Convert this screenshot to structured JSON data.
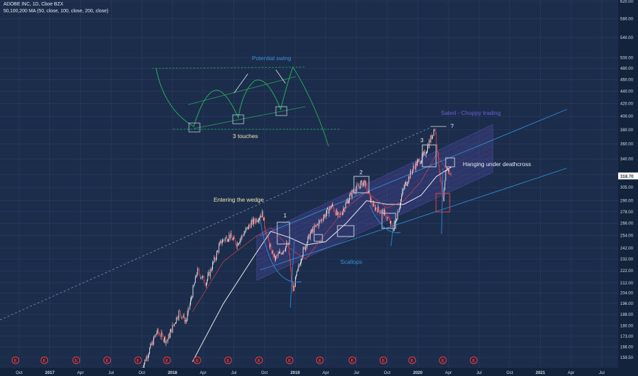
{
  "header": {
    "symbol_line": "ADOBE INC, 1D, Cboe BZX",
    "indicator_line": "50,100,200 MA (50, close, 100, close, 200, close)"
  },
  "colors": {
    "background": "#1b2d4b",
    "grid": "#2a3f63",
    "price_scale_bg": "#14233c",
    "candle_up": "#ffffff",
    "candle_down": "#e9444e",
    "ma_50": "#e9444e",
    "ma_100": "#ffffff",
    "trendline": "#2f8fd8",
    "channel_fill": "#5b4fb0",
    "annotation_green": "#26a65b",
    "annotation_text": "#f2e6b0",
    "label_blue": "#3a8fd8",
    "label_purple": "#6f5fd6",
    "earnings_badge": "#e9444e",
    "last_price_badge": "#ffffff"
  },
  "chart_data": {
    "type": "candlestick",
    "title": "ADOBE INC",
    "interval": "1D",
    "exchange": "Cboe BZX",
    "y_scale": "logarithmic",
    "ylim": [
      153,
      620
    ],
    "y_ticks": [
      159.5,
      166.0,
      173.0,
      180.0,
      188.0,
      196.0,
      204.0,
      212.0,
      222.0,
      232.0,
      242.0,
      254.0,
      266.0,
      278.0,
      290.0,
      305.0,
      320.0,
      340.0,
      360.0,
      380.0,
      400.0,
      420.0,
      440.0,
      460.0,
      480.0,
      500.0,
      540.0,
      580.0,
      620.0
    ],
    "last_price": "318.70",
    "x_ticks": [
      "Oct",
      "2017",
      "Apr",
      "Jul",
      "Oct",
      "2018",
      "Apr",
      "Jul",
      "Oct",
      "2019",
      "Apr",
      "Jul",
      "Oct",
      "2020",
      "Apr",
      "Jul",
      "Oct",
      "2021",
      "Apr",
      "Jul"
    ],
    "moving_averages": [
      "50 MA",
      "100 MA",
      "200 MA"
    ],
    "price_path": [
      [
        "2017-10-01",
        153
      ],
      [
        "2017-11-15",
        176
      ],
      [
        "2017-12-15",
        170
      ],
      [
        "2018-01-20",
        190
      ],
      [
        "2018-02-10",
        183
      ],
      [
        "2018-03-15",
        222
      ],
      [
        "2018-04-10",
        212
      ],
      [
        "2018-05-25",
        248
      ],
      [
        "2018-06-20",
        254
      ],
      [
        "2018-07-10",
        246
      ],
      [
        "2018-08-20",
        265
      ],
      [
        "2018-09-25",
        276
      ],
      [
        "2018-10-10",
        250
      ],
      [
        "2018-11-01",
        232
      ],
      [
        "2018-12-10",
        246
      ],
      [
        "2018-12-24",
        205
      ],
      [
        "2019-01-20",
        236
      ],
      [
        "2019-02-15",
        256
      ],
      [
        "2019-03-20",
        270
      ],
      [
        "2019-04-20",
        285
      ],
      [
        "2019-05-10",
        272
      ],
      [
        "2019-06-20",
        300
      ],
      [
        "2019-07-25",
        312
      ],
      [
        "2019-08-20",
        284
      ],
      [
        "2019-09-25",
        276
      ],
      [
        "2019-10-20",
        260
      ],
      [
        "2019-11-20",
        305
      ],
      [
        "2019-12-20",
        330
      ],
      [
        "2020-01-20",
        345
      ],
      [
        "2020-02-20",
        383
      ],
      [
        "2020-03-16",
        285
      ],
      [
        "2020-03-25",
        330
      ],
      [
        "2020-04-10",
        318.7
      ]
    ],
    "ma_50_path": [
      [
        "2018-03-01",
        190
      ],
      [
        "2018-06-01",
        230
      ],
      [
        "2018-09-01",
        252
      ],
      [
        "2018-10-20",
        262
      ],
      [
        "2018-12-15",
        242
      ],
      [
        "2019-02-01",
        232
      ],
      [
        "2019-04-01",
        256
      ],
      [
        "2019-06-01",
        282
      ],
      [
        "2019-08-01",
        300
      ],
      [
        "2019-10-01",
        282
      ],
      [
        "2019-11-20",
        290
      ],
      [
        "2020-01-10",
        312
      ],
      [
        "2020-02-25",
        346
      ],
      [
        "2020-04-10",
        318
      ]
    ],
    "ma_100_path": [
      [
        "2018-03-01",
        157
      ],
      [
        "2018-06-01",
        196
      ],
      [
        "2018-09-01",
        235
      ],
      [
        "2018-10-20",
        258
      ],
      [
        "2018-12-15",
        252
      ],
      [
        "2019-02-01",
        245
      ],
      [
        "2019-04-01",
        248
      ],
      [
        "2019-06-01",
        266
      ],
      [
        "2019-08-01",
        290
      ],
      [
        "2019-10-01",
        286
      ],
      [
        "2019-11-20",
        286
      ],
      [
        "2020-01-10",
        296
      ],
      [
        "2020-02-25",
        318
      ],
      [
        "2020-04-10",
        330
      ]
    ],
    "earnings_marker": "E",
    "earnings_dates": [
      "2016-09-20",
      "2016-12-15",
      "2017-03-20",
      "2017-06-20",
      "2017-09-20",
      "2017-12-15",
      "2018-03-15",
      "2018-06-15",
      "2018-09-15",
      "2018-12-15",
      "2019-03-15",
      "2019-06-20",
      "2019-09-20",
      "2019-12-15",
      "2020-03-15",
      "2020-06-15"
    ],
    "annotations": [
      {
        "text": "Potential swing",
        "color": "blue"
      },
      {
        "text": "3 touches",
        "color": "yellow"
      },
      {
        "text": "Sated - Choppy trading",
        "color": "purple"
      },
      {
        "text": "?",
        "color": "white"
      },
      {
        "text": "3",
        "color": "white"
      },
      {
        "text": "Hanging under deathcross",
        "color": "white"
      },
      {
        "text": "2",
        "color": "white"
      },
      {
        "text": "Entering the wedge",
        "color": "yellow"
      },
      {
        "text": "1",
        "color": "white"
      },
      {
        "text": "Scallops",
        "color": "blue"
      }
    ]
  }
}
